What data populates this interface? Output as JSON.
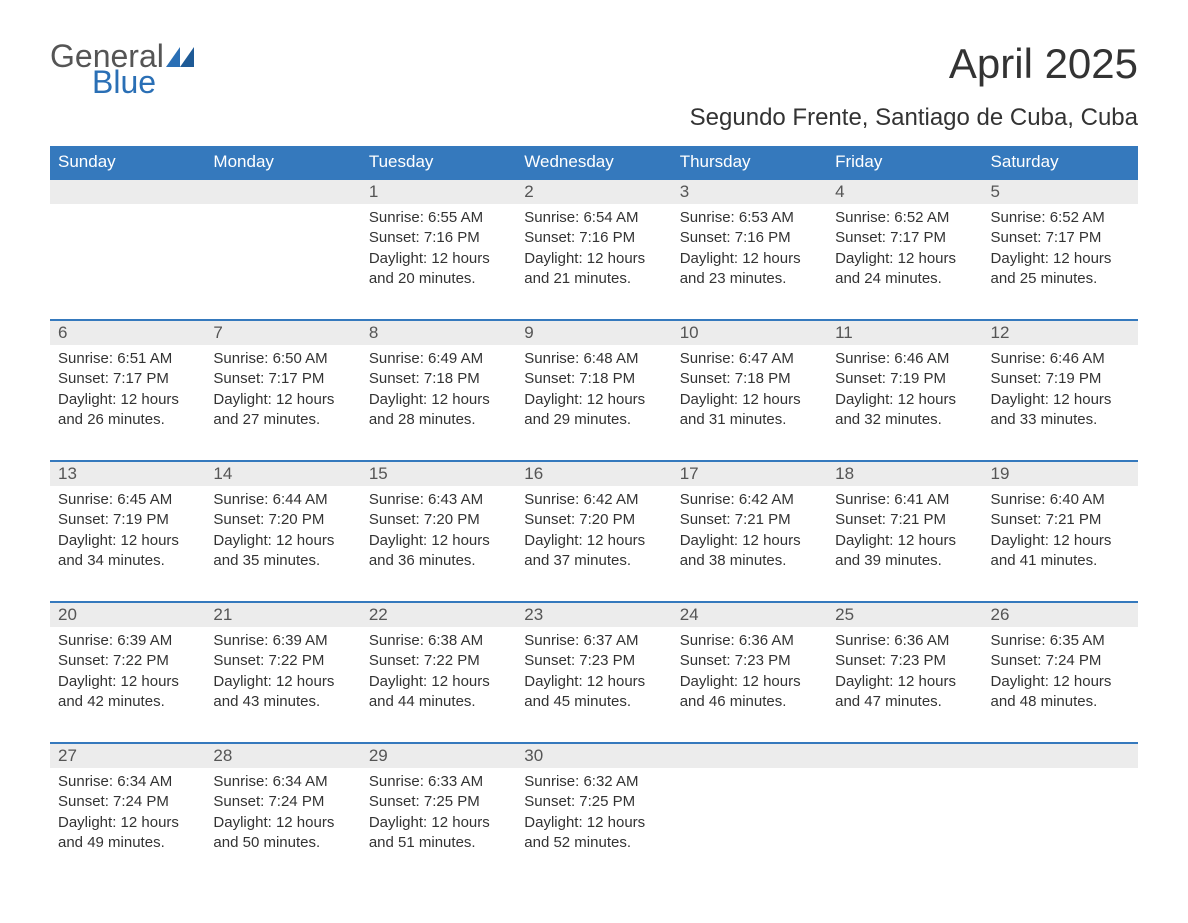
{
  "logo": {
    "general": "General",
    "blue": "Blue"
  },
  "title": "April 2025",
  "subtitle": "Segundo Frente, Santiago de Cuba, Cuba",
  "colors": {
    "header_bg": "#3579bd",
    "header_text": "#ffffff",
    "daynum_bg": "#ececec",
    "border": "#3579bd",
    "text": "#333333",
    "logo_gray": "#555555",
    "logo_blue": "#2a6fb5",
    "background": "#ffffff"
  },
  "typography": {
    "title_fontsize": 42,
    "subtitle_fontsize": 24,
    "header_fontsize": 17,
    "daynum_fontsize": 17,
    "body_fontsize": 15,
    "logo_fontsize": 32
  },
  "weekdays": [
    "Sunday",
    "Monday",
    "Tuesday",
    "Wednesday",
    "Thursday",
    "Friday",
    "Saturday"
  ],
  "weeks": [
    [
      {
        "day": "",
        "sunrise": "",
        "sunset": "",
        "daylight1": "",
        "daylight2": ""
      },
      {
        "day": "",
        "sunrise": "",
        "sunset": "",
        "daylight1": "",
        "daylight2": ""
      },
      {
        "day": "1",
        "sunrise": "Sunrise: 6:55 AM",
        "sunset": "Sunset: 7:16 PM",
        "daylight1": "Daylight: 12 hours",
        "daylight2": "and 20 minutes."
      },
      {
        "day": "2",
        "sunrise": "Sunrise: 6:54 AM",
        "sunset": "Sunset: 7:16 PM",
        "daylight1": "Daylight: 12 hours",
        "daylight2": "and 21 minutes."
      },
      {
        "day": "3",
        "sunrise": "Sunrise: 6:53 AM",
        "sunset": "Sunset: 7:16 PM",
        "daylight1": "Daylight: 12 hours",
        "daylight2": "and 23 minutes."
      },
      {
        "day": "4",
        "sunrise": "Sunrise: 6:52 AM",
        "sunset": "Sunset: 7:17 PM",
        "daylight1": "Daylight: 12 hours",
        "daylight2": "and 24 minutes."
      },
      {
        "day": "5",
        "sunrise": "Sunrise: 6:52 AM",
        "sunset": "Sunset: 7:17 PM",
        "daylight1": "Daylight: 12 hours",
        "daylight2": "and 25 minutes."
      }
    ],
    [
      {
        "day": "6",
        "sunrise": "Sunrise: 6:51 AM",
        "sunset": "Sunset: 7:17 PM",
        "daylight1": "Daylight: 12 hours",
        "daylight2": "and 26 minutes."
      },
      {
        "day": "7",
        "sunrise": "Sunrise: 6:50 AM",
        "sunset": "Sunset: 7:17 PM",
        "daylight1": "Daylight: 12 hours",
        "daylight2": "and 27 minutes."
      },
      {
        "day": "8",
        "sunrise": "Sunrise: 6:49 AM",
        "sunset": "Sunset: 7:18 PM",
        "daylight1": "Daylight: 12 hours",
        "daylight2": "and 28 minutes."
      },
      {
        "day": "9",
        "sunrise": "Sunrise: 6:48 AM",
        "sunset": "Sunset: 7:18 PM",
        "daylight1": "Daylight: 12 hours",
        "daylight2": "and 29 minutes."
      },
      {
        "day": "10",
        "sunrise": "Sunrise: 6:47 AM",
        "sunset": "Sunset: 7:18 PM",
        "daylight1": "Daylight: 12 hours",
        "daylight2": "and 31 minutes."
      },
      {
        "day": "11",
        "sunrise": "Sunrise: 6:46 AM",
        "sunset": "Sunset: 7:19 PM",
        "daylight1": "Daylight: 12 hours",
        "daylight2": "and 32 minutes."
      },
      {
        "day": "12",
        "sunrise": "Sunrise: 6:46 AM",
        "sunset": "Sunset: 7:19 PM",
        "daylight1": "Daylight: 12 hours",
        "daylight2": "and 33 minutes."
      }
    ],
    [
      {
        "day": "13",
        "sunrise": "Sunrise: 6:45 AM",
        "sunset": "Sunset: 7:19 PM",
        "daylight1": "Daylight: 12 hours",
        "daylight2": "and 34 minutes."
      },
      {
        "day": "14",
        "sunrise": "Sunrise: 6:44 AM",
        "sunset": "Sunset: 7:20 PM",
        "daylight1": "Daylight: 12 hours",
        "daylight2": "and 35 minutes."
      },
      {
        "day": "15",
        "sunrise": "Sunrise: 6:43 AM",
        "sunset": "Sunset: 7:20 PM",
        "daylight1": "Daylight: 12 hours",
        "daylight2": "and 36 minutes."
      },
      {
        "day": "16",
        "sunrise": "Sunrise: 6:42 AM",
        "sunset": "Sunset: 7:20 PM",
        "daylight1": "Daylight: 12 hours",
        "daylight2": "and 37 minutes."
      },
      {
        "day": "17",
        "sunrise": "Sunrise: 6:42 AM",
        "sunset": "Sunset: 7:21 PM",
        "daylight1": "Daylight: 12 hours",
        "daylight2": "and 38 minutes."
      },
      {
        "day": "18",
        "sunrise": "Sunrise: 6:41 AM",
        "sunset": "Sunset: 7:21 PM",
        "daylight1": "Daylight: 12 hours",
        "daylight2": "and 39 minutes."
      },
      {
        "day": "19",
        "sunrise": "Sunrise: 6:40 AM",
        "sunset": "Sunset: 7:21 PM",
        "daylight1": "Daylight: 12 hours",
        "daylight2": "and 41 minutes."
      }
    ],
    [
      {
        "day": "20",
        "sunrise": "Sunrise: 6:39 AM",
        "sunset": "Sunset: 7:22 PM",
        "daylight1": "Daylight: 12 hours",
        "daylight2": "and 42 minutes."
      },
      {
        "day": "21",
        "sunrise": "Sunrise: 6:39 AM",
        "sunset": "Sunset: 7:22 PM",
        "daylight1": "Daylight: 12 hours",
        "daylight2": "and 43 minutes."
      },
      {
        "day": "22",
        "sunrise": "Sunrise: 6:38 AM",
        "sunset": "Sunset: 7:22 PM",
        "daylight1": "Daylight: 12 hours",
        "daylight2": "and 44 minutes."
      },
      {
        "day": "23",
        "sunrise": "Sunrise: 6:37 AM",
        "sunset": "Sunset: 7:23 PM",
        "daylight1": "Daylight: 12 hours",
        "daylight2": "and 45 minutes."
      },
      {
        "day": "24",
        "sunrise": "Sunrise: 6:36 AM",
        "sunset": "Sunset: 7:23 PM",
        "daylight1": "Daylight: 12 hours",
        "daylight2": "and 46 minutes."
      },
      {
        "day": "25",
        "sunrise": "Sunrise: 6:36 AM",
        "sunset": "Sunset: 7:23 PM",
        "daylight1": "Daylight: 12 hours",
        "daylight2": "and 47 minutes."
      },
      {
        "day": "26",
        "sunrise": "Sunrise: 6:35 AM",
        "sunset": "Sunset: 7:24 PM",
        "daylight1": "Daylight: 12 hours",
        "daylight2": "and 48 minutes."
      }
    ],
    [
      {
        "day": "27",
        "sunrise": "Sunrise: 6:34 AM",
        "sunset": "Sunset: 7:24 PM",
        "daylight1": "Daylight: 12 hours",
        "daylight2": "and 49 minutes."
      },
      {
        "day": "28",
        "sunrise": "Sunrise: 6:34 AM",
        "sunset": "Sunset: 7:24 PM",
        "daylight1": "Daylight: 12 hours",
        "daylight2": "and 50 minutes."
      },
      {
        "day": "29",
        "sunrise": "Sunrise: 6:33 AM",
        "sunset": "Sunset: 7:25 PM",
        "daylight1": "Daylight: 12 hours",
        "daylight2": "and 51 minutes."
      },
      {
        "day": "30",
        "sunrise": "Sunrise: 6:32 AM",
        "sunset": "Sunset: 7:25 PM",
        "daylight1": "Daylight: 12 hours",
        "daylight2": "and 52 minutes."
      },
      {
        "day": "",
        "sunrise": "",
        "sunset": "",
        "daylight1": "",
        "daylight2": ""
      },
      {
        "day": "",
        "sunrise": "",
        "sunset": "",
        "daylight1": "",
        "daylight2": ""
      },
      {
        "day": "",
        "sunrise": "",
        "sunset": "",
        "daylight1": "",
        "daylight2": ""
      }
    ]
  ]
}
